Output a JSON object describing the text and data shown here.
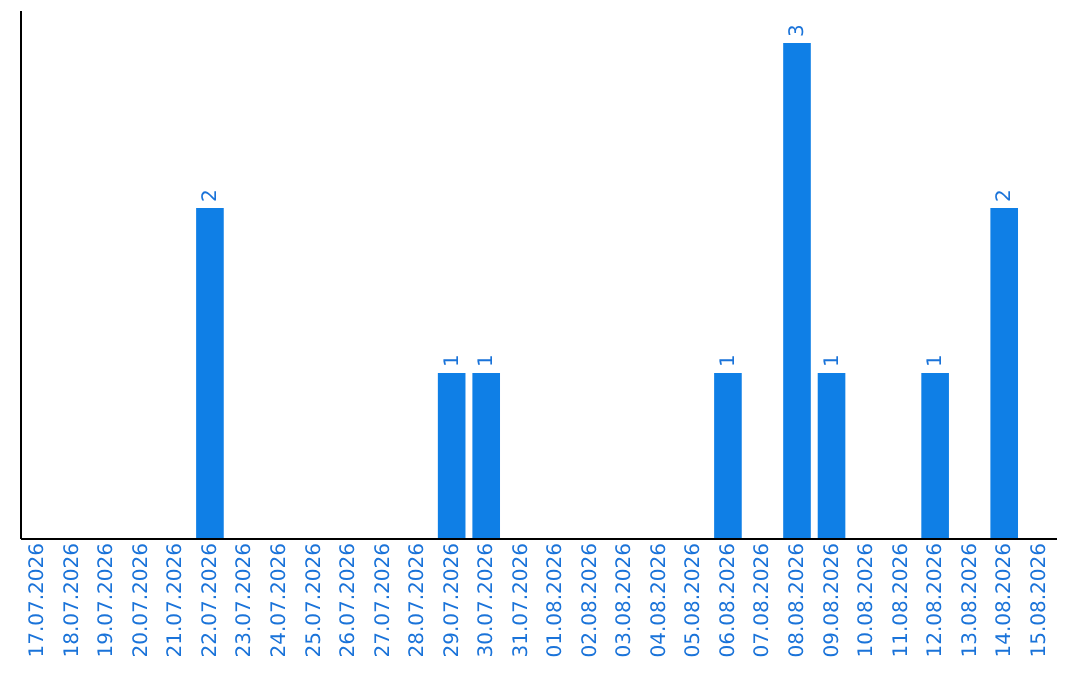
{
  "chart_data": {
    "type": "bar",
    "categories": [
      "17.07.2026",
      "18.07.2026",
      "19.07.2026",
      "20.07.2026",
      "21.07.2026",
      "22.07.2026",
      "23.07.2026",
      "24.07.2026",
      "25.07.2026",
      "26.07.2026",
      "27.07.2026",
      "28.07.2026",
      "29.07.2026",
      "30.07.2026",
      "31.07.2026",
      "01.08.2026",
      "02.08.2026",
      "03.08.2026",
      "04.08.2026",
      "05.08.2026",
      "06.08.2026",
      "07.08.2026",
      "08.08.2026",
      "09.08.2026",
      "10.08.2026",
      "11.08.2026",
      "12.08.2026",
      "13.08.2026",
      "14.08.2026",
      "15.08.2026"
    ],
    "values": [
      0,
      0,
      0,
      0,
      0,
      2,
      0,
      0,
      0,
      0,
      0,
      0,
      1,
      1,
      0,
      0,
      0,
      0,
      0,
      0,
      1,
      0,
      3,
      1,
      0,
      0,
      1,
      0,
      2,
      0
    ],
    "value_labels": [
      null,
      null,
      null,
      null,
      null,
      "2",
      null,
      null,
      null,
      null,
      null,
      null,
      "1",
      "1",
      null,
      null,
      null,
      null,
      null,
      null,
      "1",
      null,
      "3",
      "1",
      null,
      null,
      "1",
      null,
      "2",
      null
    ],
    "color": "#0f7fe6",
    "ylim": [
      0,
      3.2
    ],
    "tick_labels": "x",
    "grid": false
  }
}
